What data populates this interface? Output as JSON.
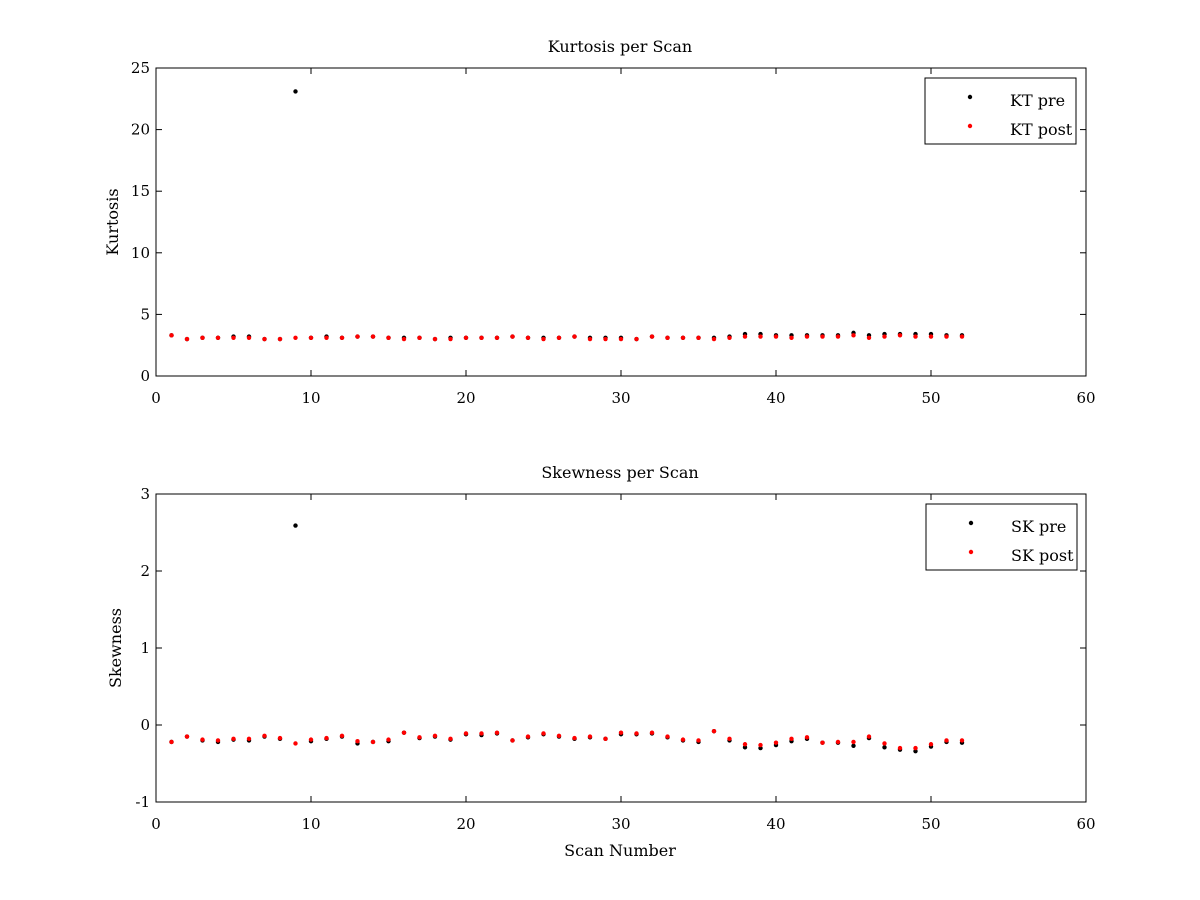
{
  "chart_data": [
    {
      "type": "scatter",
      "title": "Kurtosis per Scan",
      "xlabel": "",
      "ylabel": "Kurtosis",
      "xlim": [
        0,
        60
      ],
      "ylim": [
        0,
        25
      ],
      "xticks": [
        0,
        10,
        20,
        30,
        40,
        50,
        60
      ],
      "yticks": [
        0,
        5,
        10,
        15,
        20,
        25
      ],
      "xtick_labels": [
        "0",
        "10",
        "20",
        "30",
        "40",
        "50",
        "60"
      ],
      "ytick_labels": [
        "0",
        "5",
        "10",
        "15",
        "20",
        "25"
      ],
      "legend_position": "top-right",
      "x": [
        1,
        2,
        3,
        4,
        5,
        6,
        7,
        8,
        9,
        10,
        11,
        12,
        13,
        14,
        15,
        16,
        17,
        18,
        19,
        20,
        21,
        22,
        23,
        24,
        25,
        26,
        27,
        28,
        29,
        30,
        31,
        32,
        33,
        34,
        35,
        36,
        37,
        38,
        39,
        40,
        41,
        42,
        43,
        44,
        45,
        46,
        47,
        48,
        49,
        50,
        51,
        52
      ],
      "series": [
        {
          "name": "KT pre",
          "color": "#000000",
          "values": [
            3.3,
            3.0,
            3.1,
            3.1,
            3.2,
            3.2,
            3.0,
            3.0,
            23.1,
            3.1,
            3.2,
            3.1,
            3.2,
            3.2,
            3.1,
            3.1,
            3.1,
            3.0,
            3.1,
            3.1,
            3.1,
            3.1,
            3.2,
            3.1,
            3.1,
            3.1,
            3.2,
            3.1,
            3.1,
            3.1,
            3.0,
            3.2,
            3.1,
            3.1,
            3.1,
            3.1,
            3.2,
            3.4,
            3.4,
            3.3,
            3.3,
            3.3,
            3.3,
            3.3,
            3.5,
            3.3,
            3.4,
            3.4,
            3.4,
            3.4,
            3.3,
            3.3
          ]
        },
        {
          "name": "KT post",
          "color": "#ff0000",
          "values": [
            3.3,
            3.0,
            3.1,
            3.1,
            3.1,
            3.1,
            3.0,
            3.0,
            3.1,
            3.1,
            3.1,
            3.1,
            3.2,
            3.2,
            3.1,
            3.0,
            3.1,
            3.0,
            3.0,
            3.1,
            3.1,
            3.1,
            3.2,
            3.1,
            3.0,
            3.1,
            3.2,
            3.0,
            3.0,
            3.0,
            3.0,
            3.2,
            3.1,
            3.1,
            3.1,
            3.0,
            3.1,
            3.2,
            3.2,
            3.2,
            3.1,
            3.2,
            3.2,
            3.2,
            3.3,
            3.1,
            3.2,
            3.3,
            3.2,
            3.2,
            3.2,
            3.2
          ]
        }
      ]
    },
    {
      "type": "scatter",
      "title": "Skewness per Scan",
      "xlabel": "Scan Number",
      "ylabel": "Skewness",
      "xlim": [
        0,
        60
      ],
      "ylim": [
        -1,
        3
      ],
      "xticks": [
        0,
        10,
        20,
        30,
        40,
        50,
        60
      ],
      "yticks": [
        -1,
        0,
        1,
        2,
        3
      ],
      "xtick_labels": [
        "0",
        "10",
        "20",
        "30",
        "40",
        "50",
        "60"
      ],
      "ytick_labels": [
        "-1",
        "0",
        "1",
        "2",
        "3"
      ],
      "legend_position": "top-right",
      "x": [
        1,
        2,
        3,
        4,
        5,
        6,
        7,
        8,
        9,
        10,
        11,
        12,
        13,
        14,
        15,
        16,
        17,
        18,
        19,
        20,
        21,
        22,
        23,
        24,
        25,
        26,
        27,
        28,
        29,
        30,
        31,
        32,
        33,
        34,
        35,
        36,
        37,
        38,
        39,
        40,
        41,
        42,
        43,
        44,
        45,
        46,
        47,
        48,
        49,
        50,
        51,
        52
      ],
      "series": [
        {
          "name": "SK pre",
          "color": "#000000",
          "values": [
            -0.22,
            -0.15,
            -0.2,
            -0.22,
            -0.19,
            -0.2,
            -0.15,
            -0.18,
            2.59,
            -0.21,
            -0.18,
            -0.15,
            -0.24,
            -0.22,
            -0.21,
            -0.1,
            -0.17,
            -0.15,
            -0.19,
            -0.12,
            -0.13,
            -0.11,
            -0.2,
            -0.16,
            -0.12,
            -0.15,
            -0.18,
            -0.16,
            -0.18,
            -0.12,
            -0.12,
            -0.11,
            -0.16,
            -0.2,
            -0.22,
            -0.08,
            -0.2,
            -0.29,
            -0.3,
            -0.26,
            -0.21,
            -0.18,
            -0.23,
            -0.23,
            -0.27,
            -0.17,
            -0.29,
            -0.32,
            -0.34,
            -0.28,
            -0.22,
            -0.23
          ]
        },
        {
          "name": "SK post",
          "color": "#ff0000",
          "values": [
            -0.22,
            -0.15,
            -0.19,
            -0.2,
            -0.18,
            -0.18,
            -0.14,
            -0.17,
            -0.24,
            -0.19,
            -0.17,
            -0.14,
            -0.21,
            -0.22,
            -0.19,
            -0.1,
            -0.16,
            -0.14,
            -0.18,
            -0.11,
            -0.11,
            -0.1,
            -0.2,
            -0.15,
            -0.11,
            -0.14,
            -0.17,
            -0.15,
            -0.18,
            -0.1,
            -0.11,
            -0.1,
            -0.15,
            -0.19,
            -0.2,
            -0.08,
            -0.18,
            -0.25,
            -0.26,
            -0.23,
            -0.18,
            -0.16,
            -0.23,
            -0.22,
            -0.22,
            -0.15,
            -0.24,
            -0.3,
            -0.3,
            -0.25,
            -0.2,
            -0.2
          ]
        }
      ]
    }
  ]
}
